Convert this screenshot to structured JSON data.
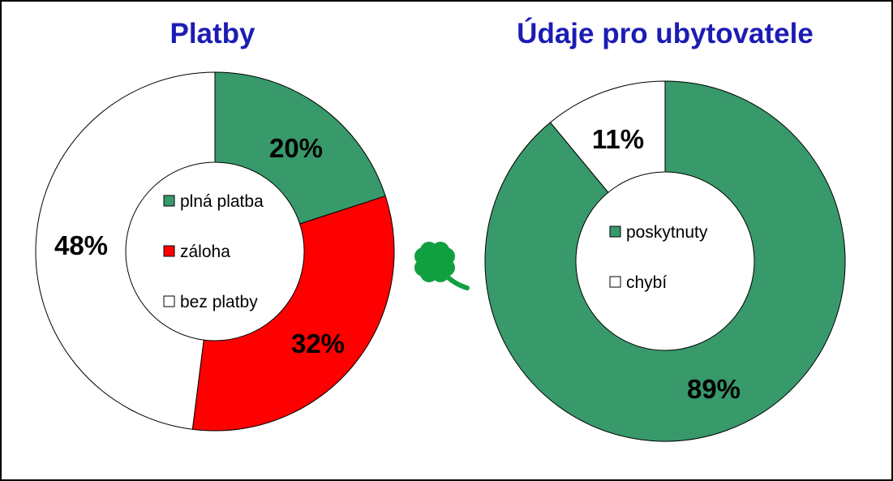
{
  "colors": {
    "title": "#1c1cb4",
    "green": "#38996a",
    "red": "#ff0000",
    "white": "#ffffff",
    "outline": "#000000"
  },
  "decoration": {
    "icon": "four-leaf-clover-icon",
    "color": "#10a040"
  },
  "chart_data": [
    {
      "type": "pie",
      "variant": "donut",
      "title": "Platby",
      "slices": [
        {
          "label": "plná platba",
          "value": 20,
          "display": "20%",
          "color": "#38996a"
        },
        {
          "label": "záloha",
          "value": 32,
          "display": "32%",
          "color": "#ff0000"
        },
        {
          "label": "bez platby",
          "value": 48,
          "display": "48%",
          "color": "#ffffff"
        }
      ],
      "legend_position": "center"
    },
    {
      "type": "pie",
      "variant": "donut",
      "title": "Údaje pro ubytovatele",
      "slices": [
        {
          "label": "poskytnuty",
          "value": 89,
          "display": "89%",
          "color": "#38996a"
        },
        {
          "label": "chybí",
          "value": 11,
          "display": "11%",
          "color": "#ffffff"
        }
      ],
      "legend_position": "center"
    }
  ]
}
